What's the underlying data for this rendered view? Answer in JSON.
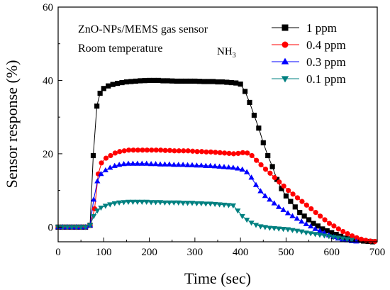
{
  "chart_data": {
    "type": "line",
    "title": "",
    "xlabel": "Time (sec)",
    "ylabel": "Sensor response (%)",
    "xlim": [
      0,
      700
    ],
    "ylim": [
      -4,
      60
    ],
    "xticks": [
      0,
      100,
      200,
      300,
      400,
      500,
      600,
      700
    ],
    "yticks": [
      0,
      20,
      40,
      60
    ],
    "grid": false,
    "legend_position": "top-right",
    "annotations": {
      "line1": "ZnO-NPs/MEMS gas sensor",
      "line2": "Room temperature",
      "gas": "NH",
      "gas_subscript": "3"
    },
    "series": [
      {
        "name": "1 ppm",
        "color": "#000000",
        "marker": "square",
        "points": [
          [
            0,
            0
          ],
          [
            10,
            0
          ],
          [
            20,
            0
          ],
          [
            30,
            0
          ],
          [
            40,
            0
          ],
          [
            50,
            0
          ],
          [
            60,
            0
          ],
          [
            70,
            0.5
          ],
          [
            77,
            19.5
          ],
          [
            85,
            33
          ],
          [
            92,
            36.5
          ],
          [
            100,
            37.8
          ],
          [
            110,
            38.5
          ],
          [
            120,
            38.9
          ],
          [
            130,
            39.2
          ],
          [
            140,
            39.4
          ],
          [
            150,
            39.6
          ],
          [
            160,
            39.7
          ],
          [
            170,
            39.8
          ],
          [
            180,
            39.9
          ],
          [
            190,
            39.95
          ],
          [
            200,
            40
          ],
          [
            210,
            40
          ],
          [
            220,
            40
          ],
          [
            230,
            39.9
          ],
          [
            240,
            39.9
          ],
          [
            250,
            39.85
          ],
          [
            260,
            39.8
          ],
          [
            270,
            39.8
          ],
          [
            280,
            39.8
          ],
          [
            290,
            39.8
          ],
          [
            300,
            39.8
          ],
          [
            310,
            39.75
          ],
          [
            320,
            39.7
          ],
          [
            330,
            39.7
          ],
          [
            340,
            39.7
          ],
          [
            350,
            39.6
          ],
          [
            360,
            39.6
          ],
          [
            370,
            39.5
          ],
          [
            380,
            39.4
          ],
          [
            390,
            39.3
          ],
          [
            400,
            39
          ],
          [
            410,
            37
          ],
          [
            420,
            34
          ],
          [
            430,
            30.5
          ],
          [
            440,
            27
          ],
          [
            450,
            23
          ],
          [
            460,
            19.5
          ],
          [
            470,
            16.5
          ],
          [
            480,
            13
          ],
          [
            490,
            10.5
          ],
          [
            500,
            8.5
          ],
          [
            510,
            7
          ],
          [
            520,
            5.5
          ],
          [
            530,
            4
          ],
          [
            540,
            3
          ],
          [
            550,
            2
          ],
          [
            560,
            1
          ],
          [
            570,
            0.3
          ],
          [
            580,
            -0.5
          ],
          [
            590,
            -1
          ],
          [
            600,
            -1.5
          ],
          [
            610,
            -2
          ],
          [
            620,
            -2.5
          ],
          [
            630,
            -3
          ],
          [
            640,
            -3.2
          ],
          [
            650,
            -3.4
          ],
          [
            660,
            -3.6
          ],
          [
            670,
            -3.8
          ],
          [
            680,
            -3.9
          ],
          [
            690,
            -4
          ]
        ]
      },
      {
        "name": "0.4 ppm",
        "color": "#ff0000",
        "marker": "circle",
        "points": [
          [
            0,
            0
          ],
          [
            10,
            0
          ],
          [
            20,
            0
          ],
          [
            30,
            0
          ],
          [
            40,
            0
          ],
          [
            50,
            0
          ],
          [
            60,
            0
          ],
          [
            70,
            0.5
          ],
          [
            80,
            5
          ],
          [
            88,
            14.5
          ],
          [
            95,
            17.5
          ],
          [
            105,
            18.8
          ],
          [
            115,
            19.5
          ],
          [
            125,
            20.2
          ],
          [
            135,
            20.6
          ],
          [
            145,
            20.8
          ],
          [
            155,
            21
          ],
          [
            165,
            21
          ],
          [
            175,
            21
          ],
          [
            185,
            21
          ],
          [
            195,
            21
          ],
          [
            205,
            21
          ],
          [
            215,
            21
          ],
          [
            225,
            21
          ],
          [
            235,
            20.9
          ],
          [
            245,
            20.9
          ],
          [
            255,
            20.8
          ],
          [
            265,
            20.8
          ],
          [
            275,
            20.8
          ],
          [
            285,
            20.8
          ],
          [
            295,
            20.7
          ],
          [
            305,
            20.6
          ],
          [
            315,
            20.6
          ],
          [
            325,
            20.5
          ],
          [
            335,
            20.5
          ],
          [
            345,
            20.4
          ],
          [
            355,
            20.3
          ],
          [
            365,
            20.2
          ],
          [
            375,
            20.1
          ],
          [
            385,
            20
          ],
          [
            395,
            20.1
          ],
          [
            405,
            20.3
          ],
          [
            415,
            20.2
          ],
          [
            425,
            19.5
          ],
          [
            435,
            18.2
          ],
          [
            445,
            17
          ],
          [
            455,
            15.8
          ],
          [
            465,
            14.7
          ],
          [
            475,
            13.5
          ],
          [
            485,
            12.3
          ],
          [
            495,
            11.2
          ],
          [
            505,
            10
          ],
          [
            515,
            9
          ],
          [
            525,
            8
          ],
          [
            535,
            7
          ],
          [
            545,
            6
          ],
          [
            555,
            5
          ],
          [
            565,
            4
          ],
          [
            575,
            3
          ],
          [
            585,
            2
          ],
          [
            595,
            1
          ],
          [
            605,
            0.3
          ],
          [
            615,
            -0.5
          ],
          [
            625,
            -1.2
          ],
          [
            635,
            -1.8
          ],
          [
            645,
            -2.4
          ],
          [
            655,
            -2.9
          ],
          [
            665,
            -3.3
          ],
          [
            675,
            -3.6
          ],
          [
            685,
            -3.8
          ],
          [
            695,
            -3.9
          ]
        ]
      },
      {
        "name": "0.3 ppm",
        "color": "#0000ff",
        "marker": "triangle-up",
        "points": [
          [
            0,
            0
          ],
          [
            10,
            0
          ],
          [
            20,
            0
          ],
          [
            30,
            0
          ],
          [
            40,
            0
          ],
          [
            50,
            0
          ],
          [
            60,
            0
          ],
          [
            70,
            0.5
          ],
          [
            78,
            7.5
          ],
          [
            86,
            12.5
          ],
          [
            94,
            14.5
          ],
          [
            104,
            15.5
          ],
          [
            114,
            16.2
          ],
          [
            124,
            16.7
          ],
          [
            134,
            17
          ],
          [
            144,
            17.2
          ],
          [
            154,
            17.3
          ],
          [
            164,
            17.3
          ],
          [
            174,
            17.3
          ],
          [
            184,
            17.3
          ],
          [
            194,
            17.3
          ],
          [
            204,
            17.2
          ],
          [
            214,
            17.2
          ],
          [
            224,
            17.1
          ],
          [
            234,
            17.1
          ],
          [
            244,
            17.1
          ],
          [
            254,
            17
          ],
          [
            264,
            17
          ],
          [
            274,
            17
          ],
          [
            284,
            16.9
          ],
          [
            294,
            16.9
          ],
          [
            304,
            16.8
          ],
          [
            314,
            16.8
          ],
          [
            324,
            16.7
          ],
          [
            334,
            16.7
          ],
          [
            344,
            16.6
          ],
          [
            354,
            16.5
          ],
          [
            364,
            16.4
          ],
          [
            374,
            16.3
          ],
          [
            384,
            16.2
          ],
          [
            394,
            16
          ],
          [
            404,
            15.7
          ],
          [
            414,
            15
          ],
          [
            424,
            13.5
          ],
          [
            434,
            11.5
          ],
          [
            444,
            9.8
          ],
          [
            454,
            8.5
          ],
          [
            464,
            7.5
          ],
          [
            474,
            6.5
          ],
          [
            484,
            5.5
          ],
          [
            494,
            4.7
          ],
          [
            504,
            3.8
          ],
          [
            514,
            3
          ],
          [
            524,
            2.3
          ],
          [
            534,
            1.5
          ],
          [
            544,
            0.8
          ],
          [
            554,
            0.2
          ],
          [
            564,
            -0.5
          ],
          [
            574,
            -1
          ],
          [
            584,
            -1.6
          ],
          [
            594,
            -2.2
          ],
          [
            604,
            -2.7
          ],
          [
            614,
            -3.1
          ],
          [
            624,
            -3.4
          ],
          [
            634,
            -3.6
          ],
          [
            644,
            -3.8
          ],
          [
            654,
            -3.9
          ]
        ]
      },
      {
        "name": "0.1 ppm",
        "color": "#008080",
        "marker": "triangle-down",
        "points": [
          [
            0,
            0
          ],
          [
            10,
            0
          ],
          [
            20,
            0
          ],
          [
            30,
            0
          ],
          [
            40,
            0
          ],
          [
            50,
            0
          ],
          [
            60,
            0
          ],
          [
            70,
            0.5
          ],
          [
            78,
            3
          ],
          [
            86,
            4.5
          ],
          [
            94,
            5.3
          ],
          [
            104,
            5.8
          ],
          [
            114,
            6.2
          ],
          [
            124,
            6.5
          ],
          [
            134,
            6.7
          ],
          [
            144,
            6.8
          ],
          [
            154,
            6.9
          ],
          [
            164,
            6.9
          ],
          [
            174,
            6.9
          ],
          [
            184,
            6.9
          ],
          [
            194,
            6.9
          ],
          [
            204,
            6.8
          ],
          [
            214,
            6.8
          ],
          [
            224,
            6.8
          ],
          [
            234,
            6.7
          ],
          [
            244,
            6.7
          ],
          [
            254,
            6.7
          ],
          [
            264,
            6.7
          ],
          [
            274,
            6.6
          ],
          [
            284,
            6.6
          ],
          [
            294,
            6.6
          ],
          [
            304,
            6.5
          ],
          [
            314,
            6.5
          ],
          [
            324,
            6.4
          ],
          [
            334,
            6.4
          ],
          [
            344,
            6.3
          ],
          [
            354,
            6.2
          ],
          [
            364,
            6.1
          ],
          [
            374,
            6
          ],
          [
            384,
            5.9
          ],
          [
            394,
            4.5
          ],
          [
            404,
            3
          ],
          [
            414,
            2
          ],
          [
            424,
            1.2
          ],
          [
            434,
            0.6
          ],
          [
            444,
            0.2
          ],
          [
            454,
            0
          ],
          [
            464,
            -0.2
          ],
          [
            474,
            -0.3
          ],
          [
            484,
            -0.4
          ],
          [
            494,
            -0.5
          ],
          [
            504,
            -0.6
          ],
          [
            514,
            -0.8
          ],
          [
            524,
            -1
          ],
          [
            534,
            -1.2
          ],
          [
            544,
            -1.5
          ],
          [
            554,
            -1.7
          ],
          [
            564,
            -1.9
          ],
          [
            574,
            -2.1
          ],
          [
            584,
            -2.3
          ],
          [
            594,
            -2.5
          ],
          [
            604,
            -2.7
          ],
          [
            614,
            -2.9
          ],
          [
            624,
            -3.1
          ],
          [
            634,
            -3.3
          ],
          [
            644,
            -3.5
          ]
        ]
      }
    ]
  }
}
